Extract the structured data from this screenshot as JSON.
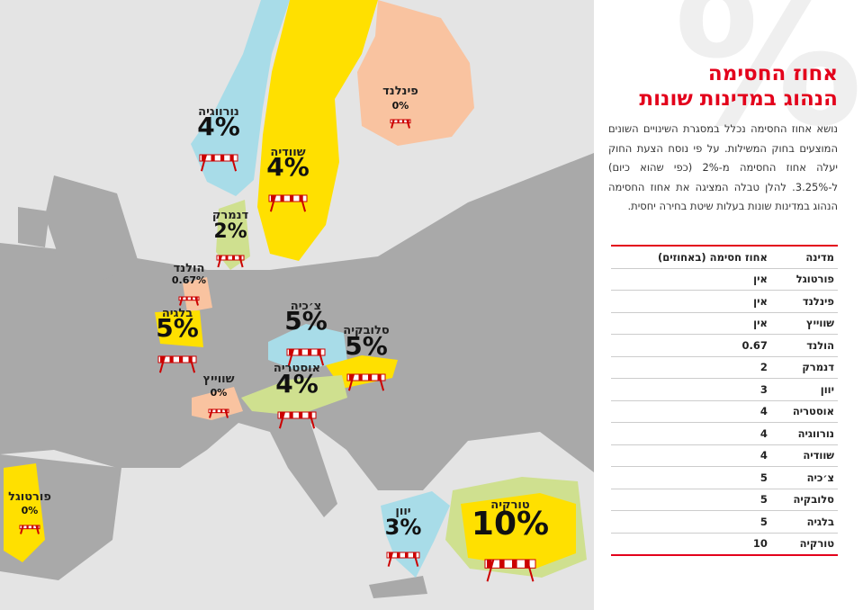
{
  "header": {
    "background_symbol": "%",
    "title_line1": "אחוז החסימה",
    "title_line2": "הנהוג במדינות שונות"
  },
  "description": "נושא אחוז החסימה נכלל במסגרת השינויים השונים המוצעים בחוק המשילות. על פי נוסח הצעת החוק יעלה אחוז החסימה מ-2% (כפי שהוא כיום) ל-3.25%. להלן טבלה המציגה את אחוז החסימה הנהוג במדינות שונות בעלות שיטת בחירה יחסית.",
  "map_labels": [
    {
      "name": "נורווגיה",
      "value": "4%"
    },
    {
      "name": "שוודיה",
      "value": "4%"
    },
    {
      "name": "פינלנד",
      "value": "0%"
    },
    {
      "name": "דנמרק",
      "value": "2%"
    },
    {
      "name": "הולנד",
      "value": "0.67%"
    },
    {
      "name": "בלגיה",
      "value": "5%"
    },
    {
      "name": "צ׳כיה",
      "value": "5%"
    },
    {
      "name": "סלובקיה",
      "value": "5%"
    },
    {
      "name": "אוסטריה",
      "value": "4%"
    },
    {
      "name": "שווייץ",
      "value": "0%"
    },
    {
      "name": "פורטוגל",
      "value": "0%"
    },
    {
      "name": "יוון",
      "value": "3%"
    },
    {
      "name": "טורקיה",
      "value": "10%"
    }
  ],
  "table": {
    "headers": [
      "מדינה",
      "אחוז חסימה (באחוזים)"
    ],
    "rows": [
      [
        "פורטוגל",
        "אין"
      ],
      [
        "פינלנד",
        "אין"
      ],
      [
        "שווייץ",
        "אין"
      ],
      [
        "הולנד",
        "0.67"
      ],
      [
        "דנמרק",
        "2"
      ],
      [
        "יוון",
        "3"
      ],
      [
        "אוסטריה",
        "4"
      ],
      [
        "נורווגיה",
        "4"
      ],
      [
        "שוודיה",
        "4"
      ],
      [
        "צ׳כיה",
        "5"
      ],
      [
        "סלובקיה",
        "5"
      ],
      [
        "בלגיה",
        "5"
      ],
      [
        "טורקיה",
        "10"
      ]
    ]
  }
}
